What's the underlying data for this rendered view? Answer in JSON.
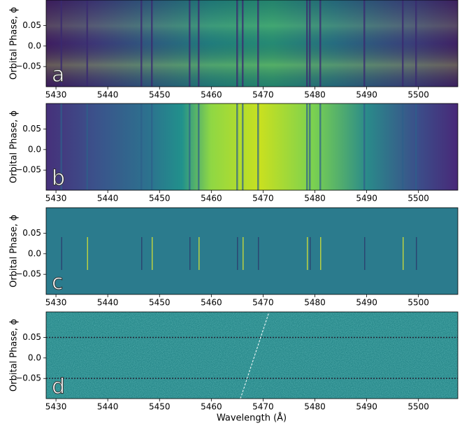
{
  "chart_data": [
    {
      "type": "heatmap",
      "panel_label": "a",
      "ylabel": "Orbital Phase, ϕ",
      "xlim": [
        5428.1,
        5507.6
      ],
      "xticks": [
        5430,
        5440,
        5450,
        5460,
        5470,
        5480,
        5490,
        5500
      ],
      "ylim": [
        -0.099,
        0.112
      ],
      "yticks": [
        {
          "value": 0.05,
          "label": "0.05"
        },
        {
          "value": 0,
          "label": "0.0"
        },
        {
          "value": -0.05,
          "label": "−0.05"
        }
      ]
    },
    {
      "type": "heatmap",
      "panel_label": "b",
      "ylabel": "Orbital Phase, ϕ",
      "xlim": [
        5428.1,
        5507.6
      ],
      "xticks": [
        5430,
        5440,
        5450,
        5460,
        5470,
        5480,
        5490,
        5500
      ],
      "ylim": [
        -0.099,
        0.112
      ],
      "yticks": [
        {
          "value": 0.05,
          "label": "0.05"
        },
        {
          "value": 0,
          "label": "0.0"
        },
        {
          "value": -0.05,
          "label": "−0.05"
        }
      ]
    },
    {
      "type": "heatmap",
      "panel_label": "c",
      "ylabel": "Orbital Phase, ϕ",
      "xlim": [
        5428.1,
        5507.6
      ],
      "xticks": [
        5430,
        5440,
        5450,
        5460,
        5470,
        5480,
        5490,
        5500
      ],
      "ylim": [
        -0.099,
        0.112
      ],
      "yticks": [
        {
          "value": 0.05,
          "label": "0.05"
        },
        {
          "value": 0,
          "label": "0.0"
        },
        {
          "value": -0.05,
          "label": "−0.05"
        }
      ]
    },
    {
      "type": "heatmap",
      "panel_label": "d",
      "ylabel": "Orbital Phase, ϕ",
      "xlabel": "Wavelength (Å)",
      "xlim": [
        5428.1,
        5507.6
      ],
      "xticks": [
        5430,
        5440,
        5450,
        5460,
        5470,
        5480,
        5490,
        5500
      ],
      "ylim": [
        -0.099,
        0.112
      ],
      "yticks": [
        {
          "value": 0.05,
          "label": "0.05"
        },
        {
          "value": 0,
          "label": "0.0"
        },
        {
          "value": -0.05,
          "label": "−0.05"
        }
      ]
    }
  ]
}
